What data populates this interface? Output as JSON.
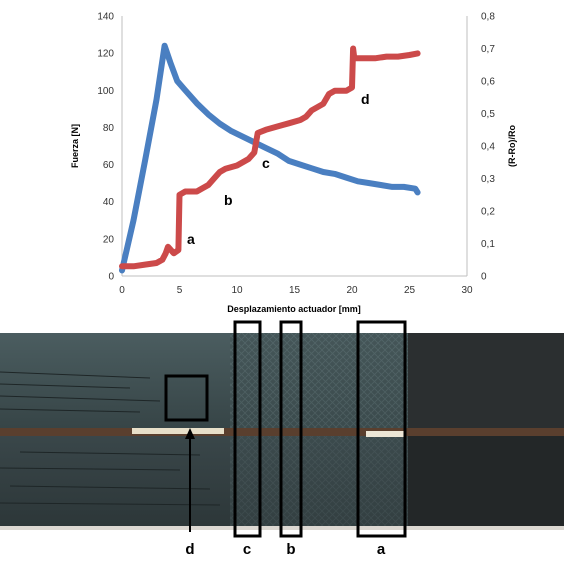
{
  "chart_data": {
    "type": "line",
    "xlabel": "Desplazamiento actuador [mm]",
    "ylabel": "Fuerza [N]",
    "y2label": "(R-Ro)/Ro",
    "xlim": [
      0,
      30
    ],
    "ylim": [
      0,
      140
    ],
    "y2lim": [
      0,
      0.8
    ],
    "x_ticks": [
      0,
      5,
      10,
      15,
      20,
      25,
      30
    ],
    "y_ticks": [
      0,
      20,
      40,
      60,
      80,
      100,
      120,
      140
    ],
    "y2_ticks": [
      "0",
      "0,1",
      "0,2",
      "0,3",
      "0,4",
      "0,5",
      "0,6",
      "0,7",
      "0,8"
    ],
    "grid": false,
    "series": [
      {
        "axis": "left",
        "color": "#4a7fc1",
        "points": [
          [
            0,
            3
          ],
          [
            1,
            30
          ],
          [
            2,
            62
          ],
          [
            3,
            95
          ],
          [
            3.7,
            124
          ],
          [
            4.2,
            115
          ],
          [
            4.8,
            105
          ],
          [
            5.5,
            100
          ],
          [
            6.5,
            93
          ],
          [
            7.5,
            87
          ],
          [
            8.5,
            82
          ],
          [
            9.5,
            78
          ],
          [
            10.5,
            75
          ],
          [
            11.5,
            72
          ],
          [
            12.5,
            69
          ],
          [
            13.5,
            66
          ],
          [
            14.5,
            62
          ],
          [
            15.5,
            60
          ],
          [
            16.5,
            58
          ],
          [
            17.5,
            56
          ],
          [
            18.5,
            55
          ],
          [
            19.5,
            53
          ],
          [
            20.5,
            51
          ],
          [
            21.5,
            50
          ],
          [
            22.5,
            49
          ],
          [
            23.5,
            48
          ],
          [
            24.5,
            48
          ],
          [
            25.5,
            47
          ],
          [
            25.7,
            45
          ]
        ]
      },
      {
        "axis": "right",
        "color": "#cc4a4a",
        "points": [
          [
            0,
            0.03
          ],
          [
            1,
            0.03
          ],
          [
            2,
            0.035
          ],
          [
            3,
            0.04
          ],
          [
            3.5,
            0.05
          ],
          [
            3.8,
            0.07
          ],
          [
            4,
            0.09
          ],
          [
            4.5,
            0.07
          ],
          [
            4.9,
            0.08
          ],
          [
            5,
            0.25
          ],
          [
            5.5,
            0.26
          ],
          [
            6.5,
            0.26
          ],
          [
            7,
            0.27
          ],
          [
            7.5,
            0.28
          ],
          [
            8,
            0.3
          ],
          [
            8.5,
            0.32
          ],
          [
            9,
            0.33
          ],
          [
            10,
            0.34
          ],
          [
            11,
            0.36
          ],
          [
            11.5,
            0.38
          ],
          [
            11.8,
            0.44
          ],
          [
            12.5,
            0.45
          ],
          [
            13.5,
            0.46
          ],
          [
            14.5,
            0.47
          ],
          [
            15.5,
            0.48
          ],
          [
            16,
            0.49
          ],
          [
            16.5,
            0.51
          ],
          [
            17.5,
            0.53
          ],
          [
            18,
            0.56
          ],
          [
            18.5,
            0.57
          ],
          [
            19.5,
            0.57
          ],
          [
            20,
            0.58
          ],
          [
            20.1,
            0.7
          ],
          [
            20.2,
            0.67
          ],
          [
            21,
            0.67
          ],
          [
            22,
            0.67
          ],
          [
            23,
            0.675
          ],
          [
            24,
            0.675
          ],
          [
            25,
            0.68
          ],
          [
            25.7,
            0.685
          ]
        ]
      }
    ],
    "annotations": [
      "a",
      "b",
      "c",
      "d"
    ]
  },
  "photo": {
    "labels": [
      "d",
      "c",
      "b",
      "a"
    ]
  }
}
